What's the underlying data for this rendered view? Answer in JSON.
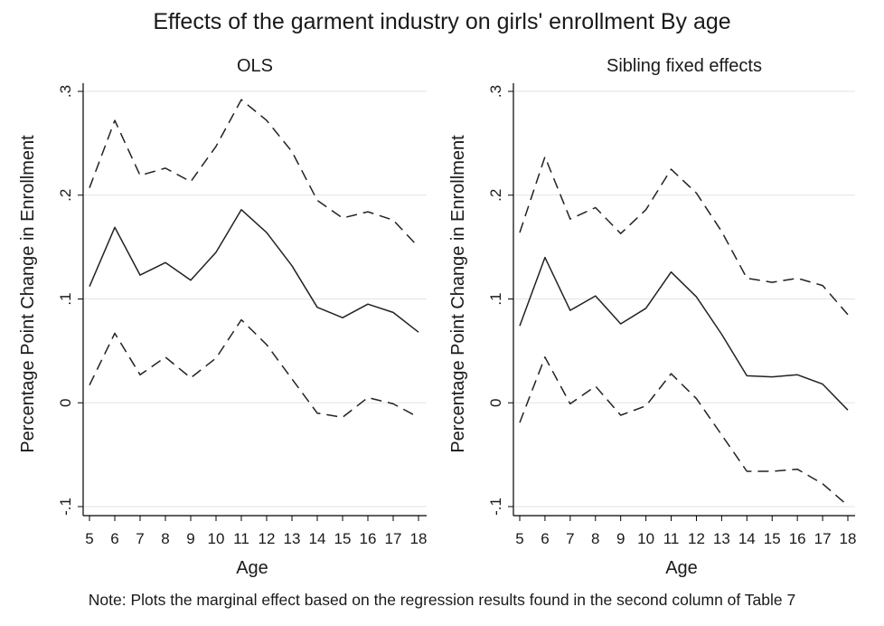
{
  "title": "Effects of the garment industry on girls' enrollment By age",
  "note": "Note: Plots the marginal effect based on the regression results found in the second column of Table 7",
  "colors": {
    "line": "#222222",
    "grid": "#e3e3e3",
    "axis": "#000000"
  },
  "chart_data": [
    {
      "type": "line",
      "title": "OLS",
      "xlabel": "Age",
      "ylabel": "Percentage Point Change in Enrollment",
      "x": [
        5,
        6,
        7,
        8,
        9,
        10,
        11,
        12,
        13,
        14,
        15,
        16,
        17,
        18
      ],
      "xticks": [
        "5",
        "6",
        "7",
        "8",
        "9",
        "10",
        "11",
        "12",
        "13",
        "14",
        "15",
        "16",
        "17",
        "18"
      ],
      "yticks": [
        {
          "value": -0.1,
          "label": "-.1"
        },
        {
          "value": 0,
          "label": "0"
        },
        {
          "value": 0.1,
          "label": ".1"
        },
        {
          "value": 0.2,
          "label": ".2"
        },
        {
          "value": 0.3,
          "label": ".3"
        }
      ],
      "ylim": [
        -0.11,
        0.3
      ],
      "grid": true,
      "series": [
        {
          "style": "dashed",
          "values": [
            0.207,
            0.272,
            0.219,
            0.226,
            0.213,
            0.247,
            0.292,
            0.272,
            0.242,
            0.195,
            0.178,
            0.184,
            0.176,
            0.15
          ]
        },
        {
          "style": "solid",
          "values": [
            0.112,
            0.169,
            0.123,
            0.135,
            0.118,
            0.145,
            0.186,
            0.164,
            0.132,
            0.092,
            0.082,
            0.095,
            0.087,
            0.068
          ]
        },
        {
          "style": "dashed",
          "values": [
            0.017,
            0.067,
            0.027,
            0.044,
            0.024,
            0.043,
            0.08,
            0.056,
            0.023,
            -0.01,
            -0.014,
            0.005,
            -0.001,
            -0.014
          ]
        }
      ]
    },
    {
      "type": "line",
      "title": "Sibling fixed effects",
      "xlabel": "Age",
      "ylabel": "Percentage Point Change in Enrollment",
      "x": [
        5,
        6,
        7,
        8,
        9,
        10,
        11,
        12,
        13,
        14,
        15,
        16,
        17,
        18
      ],
      "xticks": [
        "5",
        "6",
        "7",
        "8",
        "9",
        "10",
        "11",
        "12",
        "13",
        "14",
        "15",
        "16",
        "17",
        "18"
      ],
      "yticks": [
        {
          "value": -0.1,
          "label": "-.1"
        },
        {
          "value": 0,
          "label": "0"
        },
        {
          "value": 0.1,
          "label": ".1"
        },
        {
          "value": 0.2,
          "label": ".2"
        },
        {
          "value": 0.3,
          "label": ".3"
        }
      ],
      "ylim": [
        -0.11,
        0.3
      ],
      "grid": true,
      "series": [
        {
          "style": "dashed",
          "values": [
            0.164,
            0.237,
            0.177,
            0.188,
            0.163,
            0.186,
            0.225,
            0.202,
            0.165,
            0.12,
            0.116,
            0.12,
            0.113,
            0.085
          ]
        },
        {
          "style": "solid",
          "values": [
            0.074,
            0.14,
            0.089,
            0.103,
            0.076,
            0.091,
            0.126,
            0.102,
            0.066,
            0.026,
            0.025,
            0.027,
            0.018,
            -0.007
          ]
        },
        {
          "style": "dashed",
          "values": [
            -0.019,
            0.044,
            -0.001,
            0.016,
            -0.012,
            -0.003,
            0.028,
            0.004,
            -0.031,
            -0.066,
            -0.066,
            -0.064,
            -0.078,
            -0.099
          ]
        }
      ]
    }
  ]
}
